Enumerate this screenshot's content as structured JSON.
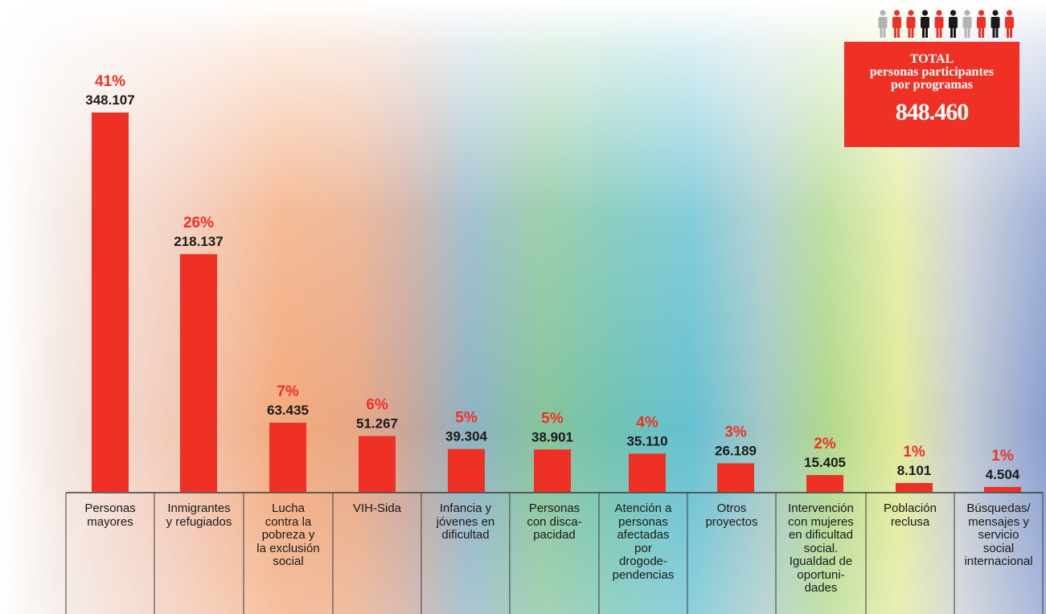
{
  "chart_data": {
    "type": "bar",
    "categories": [
      "Personas\nmayores",
      "Inmigrantes\ny refugiados",
      "Lucha\ncontra la\npobreza y\nla exclusión\nsocial",
      "VIH-Sida",
      "Infancia y\njóvenes en\ndificultad",
      "Personas\ncon disca-\npacidad",
      "Atención a\npersonas\nafectadas\npor\ndrogode-\npendencias",
      "Otros\nproyectos",
      "Intervención\ncon mujeres\nen dificultad\nsocial.\nIgualdad de\noportuni-\ndades",
      "Población\nreclusa",
      "Búsquedas/\nmensajes y\nservicio\nsocial\ninternacional"
    ],
    "values": [
      348107,
      218137,
      63435,
      51267,
      39304,
      38901,
      35110,
      26189,
      15405,
      8101,
      4504
    ],
    "value_labels": [
      "348.107",
      "218.137",
      "63.435",
      "51.267",
      "39.304",
      "38.901",
      "35.110",
      "26.189",
      "15.405",
      "8.101",
      "4.504"
    ],
    "percent_labels": [
      "41%",
      "26%",
      "7%",
      "6%",
      "5%",
      "5%",
      "4%",
      "3%",
      "2%",
      "1%",
      "1%"
    ],
    "ylim": [
      0,
      348107
    ],
    "grid": false
  },
  "total": {
    "title": "TOTAL",
    "subtitle": "personas participantes\npor programas",
    "value": "848.460"
  },
  "colors": {
    "bar": "#ee3124",
    "percent": "#ee3124",
    "value_text": "#1a1a1a",
    "box": "#ee3124",
    "person_red": "#ee3124",
    "person_black": "#1a1a1a",
    "person_grey": "#b3b3b3"
  },
  "icons": [
    "person-icon"
  ],
  "people_colors": [
    "grey",
    "red",
    "red",
    "black",
    "red",
    "black",
    "grey",
    "red",
    "black",
    "red"
  ]
}
